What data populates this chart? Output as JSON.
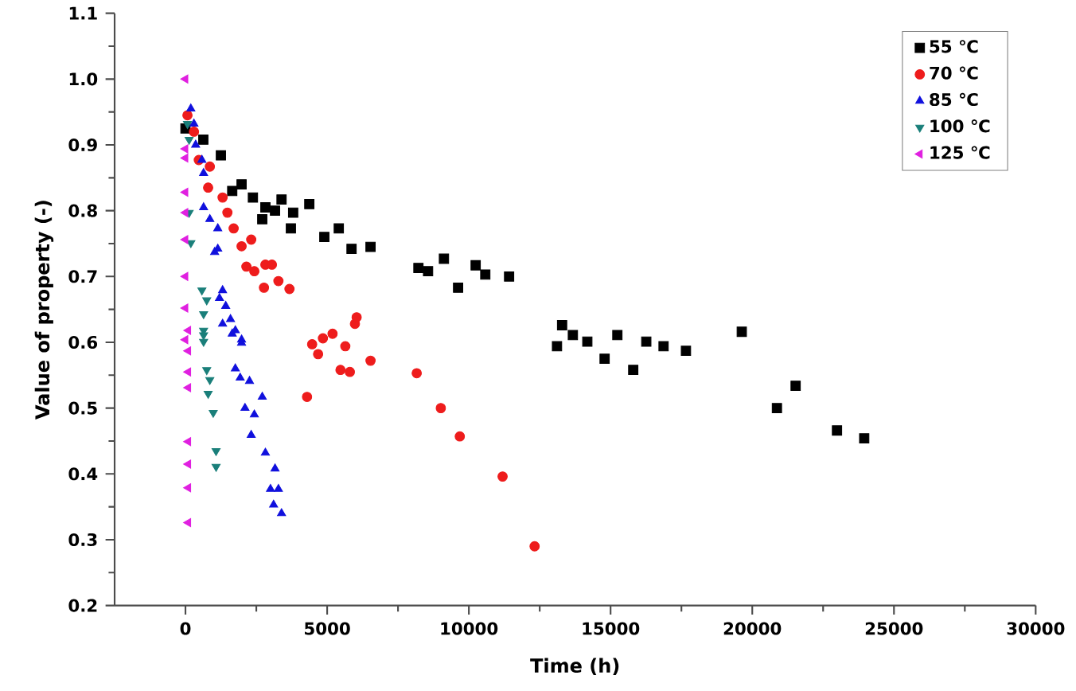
{
  "chart_data": {
    "type": "scatter",
    "xlabel": "Time (h)",
    "ylabel": "Value of property (-)",
    "xlim": [
      -2500,
      30000
    ],
    "xticks": [
      0,
      5000,
      10000,
      15000,
      20000,
      25000,
      30000
    ],
    "ylim": [
      0.2,
      1.1
    ],
    "yticks": [
      {
        "value": 0.2,
        "label": "0.2"
      },
      {
        "value": 0.3,
        "label": "0.3"
      },
      {
        "value": 0.4,
        "label": "0.4"
      },
      {
        "value": 0.5,
        "label": "0.5"
      },
      {
        "value": 0.6,
        "label": "0.6"
      },
      {
        "value": 0.7,
        "label": "0.7"
      },
      {
        "value": 0.8,
        "label": "0.8"
      },
      {
        "value": 0.9,
        "label": "0.9"
      },
      {
        "value": 1.0,
        "label": "1.0"
      },
      {
        "value": 1.1,
        "label": "1.1"
      }
    ],
    "grid": false,
    "legend": "top right",
    "series": [
      {
        "name": "55 ℃",
        "color": "#000000",
        "marker": "square",
        "x": [
          0,
          630,
          1250,
          1650,
          1980,
          2380,
          2820,
          2710,
          3160,
          3390,
          3800,
          4370,
          3720,
          4900,
          5410,
          5860,
          6530,
          8220,
          8560,
          9120,
          9620,
          10240,
          10580,
          11420,
          13110,
          13290,
          13670,
          14180,
          14790,
          15240,
          15800,
          16260,
          16870,
          17660,
          19630,
          20870,
          21530,
          22990,
          23950
        ],
        "values": [
          0.925,
          0.908,
          0.884,
          0.83,
          0.84,
          0.82,
          0.805,
          0.787,
          0.8,
          0.817,
          0.797,
          0.81,
          0.773,
          0.76,
          0.773,
          0.742,
          0.745,
          0.713,
          0.708,
          0.727,
          0.683,
          0.717,
          0.703,
          0.7,
          0.594,
          0.626,
          0.611,
          0.601,
          0.575,
          0.611,
          0.558,
          0.601,
          0.594,
          0.587,
          0.616,
          0.5,
          0.534,
          0.466,
          0.454
        ]
      },
      {
        "name": "70 ℃",
        "color": "#ee1c1c",
        "marker": "circle",
        "x": [
          70,
          300,
          470,
          860,
          800,
          1310,
          1480,
          1700,
          2320,
          1980,
          2150,
          2430,
          2820,
          3050,
          2770,
          3280,
          3670,
          4470,
          4680,
          4850,
          5190,
          5640,
          5470,
          5800,
          5980,
          6040,
          6530,
          4290,
          8160,
          9010,
          9680,
          11190,
          12320
        ],
        "values": [
          0.945,
          0.92,
          0.877,
          0.867,
          0.835,
          0.82,
          0.797,
          0.773,
          0.756,
          0.746,
          0.715,
          0.708,
          0.718,
          0.718,
          0.683,
          0.693,
          0.681,
          0.597,
          0.582,
          0.606,
          0.613,
          0.594,
          0.558,
          0.555,
          0.628,
          0.638,
          0.572,
          0.517,
          0.553,
          0.5,
          0.457,
          0.396,
          0.29
        ]
      },
      {
        "name": "85 ℃",
        "color": "#1010dd",
        "marker": "triangle",
        "x": [
          190,
          300,
          360,
          580,
          640,
          640,
          860,
          1140,
          1140,
          1030,
          1310,
          1200,
          1420,
          1590,
          1760,
          1980,
          1310,
          1650,
          1980,
          1760,
          1930,
          2260,
          2710,
          2100,
          2430,
          2320,
          2820,
          3160,
          3000,
          3280,
          3110,
          3390
        ],
        "values": [
          0.955,
          0.932,
          0.9,
          0.877,
          0.857,
          0.805,
          0.787,
          0.773,
          0.742,
          0.737,
          0.679,
          0.667,
          0.655,
          0.635,
          0.618,
          0.604,
          0.628,
          0.613,
          0.599,
          0.56,
          0.546,
          0.541,
          0.517,
          0.5,
          0.49,
          0.459,
          0.432,
          0.408,
          0.377,
          0.377,
          0.353,
          0.34
        ]
      },
      {
        "name": "100 ℃",
        "color": "#1a7f7a",
        "marker": "triangle-down",
        "x": [
          70,
          130,
          130,
          190,
          580,
          750,
          640,
          640,
          640,
          640,
          750,
          860,
          800,
          980,
          1080,
          1080
        ],
        "values": [
          0.932,
          0.908,
          0.797,
          0.751,
          0.679,
          0.664,
          0.643,
          0.611,
          0.618,
          0.601,
          0.558,
          0.543,
          0.522,
          0.493,
          0.435,
          0.411
        ]
      },
      {
        "name": "125 ℃",
        "color": "#e020e0",
        "marker": "triangle-left",
        "x": [
          0,
          0,
          0,
          0,
          0,
          0,
          0,
          0,
          0,
          100,
          100,
          100,
          100,
          100,
          100,
          100,
          100
        ],
        "values": [
          1.0,
          0.894,
          0.88,
          0.828,
          0.797,
          0.756,
          0.7,
          0.652,
          0.604,
          0.618,
          0.587,
          0.555,
          0.531,
          0.449,
          0.415,
          0.379,
          0.326
        ]
      }
    ]
  }
}
